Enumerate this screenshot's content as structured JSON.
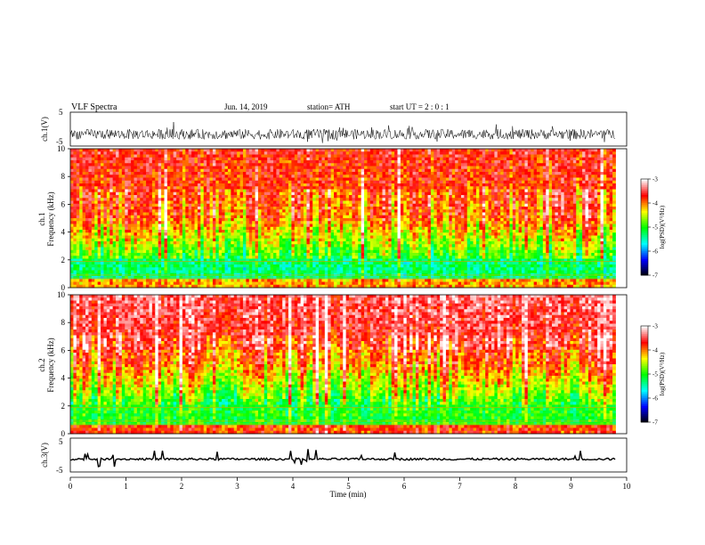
{
  "header": {
    "title": "VLF  Spectra",
    "date": "Jun. 14, 2019",
    "station": "station= ATH",
    "start": "start  UT  =    2  : 0   : 1"
  },
  "chart_data": [
    {
      "type": "line",
      "ylabel": "ch.1(V)",
      "ylim": [
        -5,
        5
      ],
      "yticks": [
        "5",
        "-5"
      ],
      "xlim": [
        0,
        10
      ],
      "description_values": {
        "mean_level": -1.5,
        "noise_amplitude": 1.5
      }
    },
    {
      "type": "heatmap",
      "ylabel": "ch.1\nFrequency (kHz)",
      "ylabel_lines": [
        "ch.1",
        "Frequency (kHz)"
      ],
      "ylim": [
        0,
        10
      ],
      "yticks": [
        "0",
        "2",
        "4",
        "6",
        "8",
        "10"
      ],
      "xlim": [
        0,
        10
      ],
      "colorbar": {
        "label": "log(PSD)(V²/Hz)",
        "range": [
          -7,
          -3
        ],
        "ticks": [
          "-3",
          "-4",
          "-5",
          "-6",
          "-7"
        ]
      }
    },
    {
      "type": "heatmap",
      "ylabel_lines": [
        "ch.2",
        "Frequency (kHz)"
      ],
      "ylim": [
        0,
        10
      ],
      "yticks": [
        "0",
        "2",
        "4",
        "6",
        "8",
        "10"
      ],
      "xlim": [
        0,
        10
      ],
      "colorbar": {
        "label": "log(PSD)(V²/Hz)",
        "range": [
          -7,
          -3
        ],
        "ticks": [
          "-3",
          "-4",
          "-5",
          "-6",
          "-7"
        ]
      }
    },
    {
      "type": "line",
      "ylabel": "ch.3(V)",
      "ylim": [
        -5,
        5
      ],
      "yticks": [
        "5",
        "-5"
      ],
      "xlim": [
        0,
        10
      ],
      "description_values": {
        "mean_level": -1.2,
        "noise_amplitude": 0.3
      }
    }
  ],
  "xaxis": {
    "label": "Time  (min)",
    "ticks": [
      "0",
      "1",
      "2",
      "3",
      "4",
      "5",
      "6",
      "7",
      "8",
      "9",
      "10"
    ],
    "data_end": 9.8
  },
  "colors": {
    "cmap": [
      "#000000",
      "#0000ff",
      "#00ffff",
      "#00ff00",
      "#ffff00",
      "#ff0000",
      "#ffffff"
    ]
  }
}
